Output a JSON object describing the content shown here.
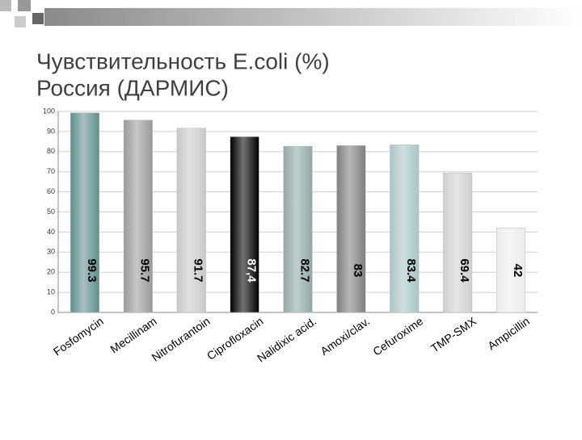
{
  "chart_data": {
    "type": "bar",
    "title": [
      "Чувствительность E.coli (%)",
      "Россия (ДАРМИС)"
    ],
    "categories": [
      "Fosfomycin",
      "Mecillinam",
      "Nitrofurantoin",
      "Ciprofloxacin",
      "Nalidixic acid.",
      "Amoxi/clav.",
      "Cefuroxime",
      "TMP-SMX",
      "Ampicillin"
    ],
    "values": [
      99.3,
      95.7,
      91.7,
      87.4,
      82.7,
      83,
      83.4,
      69.4,
      42
    ],
    "value_labels": [
      "99.3",
      "95.7",
      "91.7",
      "87,4",
      "82.7",
      "83",
      "83.4",
      "69.4",
      "42"
    ],
    "colors": [
      "#5f8f8c",
      "#9a9a9a",
      "#c8c8c8",
      "#000000",
      "#8fa8a6",
      "#7e7e7e",
      "#a8c4c4",
      "#cfcfcf",
      "#ececec"
    ],
    "ylim": [
      0,
      100
    ],
    "yticks": [
      0,
      10,
      20,
      30,
      40,
      50,
      60,
      70,
      80,
      90,
      100
    ],
    "grid": true
  }
}
